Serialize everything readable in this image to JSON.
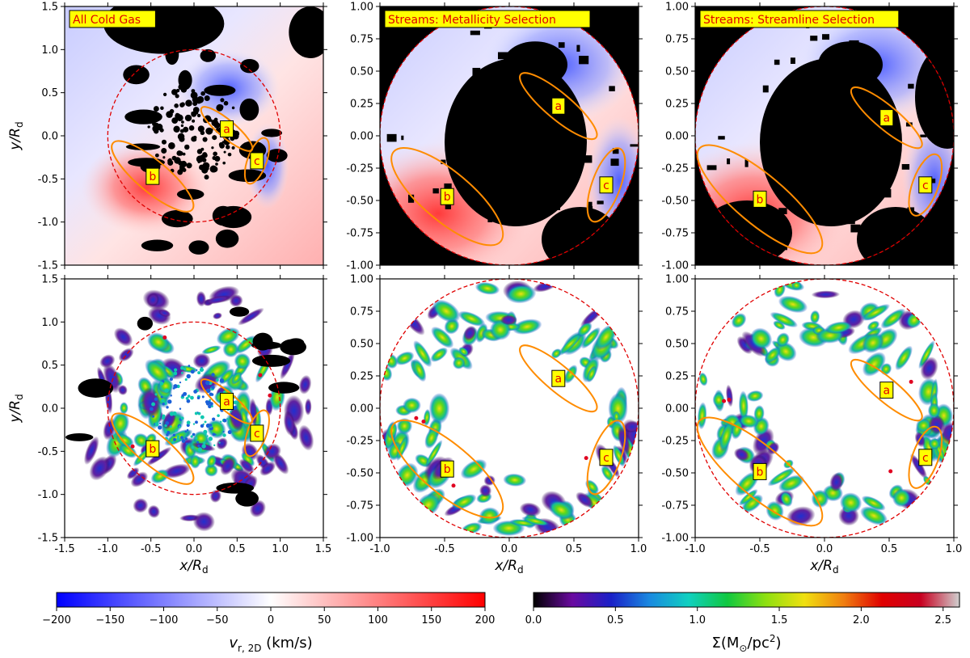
{
  "chart_data": {
    "type": "heatmap",
    "panels": [
      {
        "id": "p1",
        "row": 0,
        "col": 0,
        "map": "vr",
        "title": "All Cold Gas",
        "xlim": [
          -1.5,
          1.5
        ],
        "ylim": [
          -1.5,
          1.5
        ],
        "circle_r": 1.0,
        "yticks": [
          "-1.5",
          "-1.0",
          "-0.5",
          "0.0",
          "0.5",
          "1.0",
          "1.5"
        ],
        "xticks": [],
        "ylabel": true,
        "xlabel": false,
        "regions": [
          {
            "label": "a",
            "cx": 0.38,
            "cy": 0.08,
            "rx": 0.38,
            "ry": 0.1,
            "ang": -40
          },
          {
            "label": "b",
            "cx": -0.48,
            "cy": -0.47,
            "rx": 0.6,
            "ry": 0.18,
            "ang": -40
          },
          {
            "label": "c",
            "cx": 0.73,
            "cy": -0.29,
            "rx": 0.28,
            "ry": 0.11,
            "ang": 70
          }
        ]
      },
      {
        "id": "p2",
        "row": 0,
        "col": 1,
        "map": "vr",
        "title": "Streams: Metallicity Selection",
        "xlim": [
          -1.0,
          1.0
        ],
        "ylim": [
          -1.0,
          1.0
        ],
        "circle_r": 1.0,
        "yticks": [
          "-1.00",
          "-0.75",
          "-0.50",
          "-0.25",
          "0.00",
          "0.25",
          "0.50",
          "0.75",
          "1.00"
        ],
        "xticks": [],
        "ylabel": false,
        "xlabel": false,
        "regions": [
          {
            "label": "a",
            "cx": 0.38,
            "cy": 0.23,
            "rx": 0.38,
            "ry": 0.1,
            "ang": -40
          },
          {
            "label": "b",
            "cx": -0.48,
            "cy": -0.47,
            "rx": 0.54,
            "ry": 0.19,
            "ang": -40
          },
          {
            "label": "c",
            "cx": 0.75,
            "cy": -0.38,
            "rx": 0.3,
            "ry": 0.11,
            "ang": 70
          }
        ]
      },
      {
        "id": "p3",
        "row": 0,
        "col": 2,
        "map": "vr",
        "title": "Streams: Streamline Selection",
        "xlim": [
          -1.0,
          1.0
        ],
        "ylim": [
          -1.0,
          1.0
        ],
        "circle_r": 1.0,
        "yticks": [
          "-1.00",
          "-0.75",
          "-0.50",
          "-0.25",
          "0.00",
          "0.25",
          "0.50",
          "0.75",
          "1.00"
        ],
        "xticks": [],
        "ylabel": false,
        "xlabel": false,
        "regions": [
          {
            "label": "a",
            "cx": 0.48,
            "cy": 0.14,
            "rx": 0.35,
            "ry": 0.09,
            "ang": -40
          },
          {
            "label": "b",
            "cx": -0.5,
            "cy": -0.49,
            "rx": 0.61,
            "ry": 0.19,
            "ang": -40
          },
          {
            "label": "c",
            "cx": 0.78,
            "cy": -0.38,
            "rx": 0.25,
            "ry": 0.1,
            "ang": 70
          }
        ]
      },
      {
        "id": "p4",
        "row": 1,
        "col": 0,
        "map": "sigma",
        "title": "",
        "xlim": [
          -1.5,
          1.5
        ],
        "ylim": [
          -1.5,
          1.5
        ],
        "circle_r": 1.0,
        "yticks": [
          "-1.5",
          "-1.0",
          "-0.5",
          "0.0",
          "0.5",
          "1.0",
          "1.5"
        ],
        "xticks": [
          "-1.5",
          "-1.0",
          "-0.5",
          "0.0",
          "0.5",
          "1.0",
          "1.5"
        ],
        "ylabel": true,
        "xlabel": true,
        "regions": [
          {
            "label": "a",
            "cx": 0.38,
            "cy": 0.08,
            "rx": 0.38,
            "ry": 0.1,
            "ang": -40
          },
          {
            "label": "b",
            "cx": -0.48,
            "cy": -0.47,
            "rx": 0.6,
            "ry": 0.18,
            "ang": -40
          },
          {
            "label": "c",
            "cx": 0.73,
            "cy": -0.29,
            "rx": 0.28,
            "ry": 0.11,
            "ang": 70
          }
        ]
      },
      {
        "id": "p5",
        "row": 1,
        "col": 1,
        "map": "sigma",
        "title": "",
        "xlim": [
          -1.0,
          1.0
        ],
        "ylim": [
          -1.0,
          1.0
        ],
        "circle_r": 1.0,
        "yticks": [
          "-1.00",
          "-0.75",
          "-0.50",
          "-0.25",
          "0.00",
          "0.25",
          "0.50",
          "0.75",
          "1.00"
        ],
        "xticks": [
          "-1.0",
          "-0.5",
          "0.0",
          "0.5",
          "1.0"
        ],
        "ylabel": false,
        "xlabel": true,
        "regions": [
          {
            "label": "a",
            "cx": 0.38,
            "cy": 0.23,
            "rx": 0.38,
            "ry": 0.1,
            "ang": -40
          },
          {
            "label": "b",
            "cx": -0.48,
            "cy": -0.47,
            "rx": 0.54,
            "ry": 0.19,
            "ang": -40
          },
          {
            "label": "c",
            "cx": 0.75,
            "cy": -0.38,
            "rx": 0.3,
            "ry": 0.11,
            "ang": 70
          }
        ]
      },
      {
        "id": "p6",
        "row": 1,
        "col": 2,
        "map": "sigma",
        "title": "",
        "xlim": [
          -1.0,
          1.0
        ],
        "ylim": [
          -1.0,
          1.0
        ],
        "circle_r": 1.0,
        "yticks": [
          "-1.00",
          "-0.75",
          "-0.50",
          "-0.25",
          "0.00",
          "0.25",
          "0.50",
          "0.75",
          "1.00"
        ],
        "xticks": [
          "-1.0",
          "-0.5",
          "0.0",
          "0.5",
          "1.0"
        ],
        "ylabel": false,
        "xlabel": true,
        "regions": [
          {
            "label": "a",
            "cx": 0.48,
            "cy": 0.14,
            "rx": 0.35,
            "ry": 0.09,
            "ang": -40
          },
          {
            "label": "b",
            "cx": -0.5,
            "cy": -0.49,
            "rx": 0.61,
            "ry": 0.19,
            "ang": -40
          },
          {
            "label": "c",
            "cx": 0.78,
            "cy": -0.38,
            "rx": 0.25,
            "ry": 0.1,
            "ang": 70
          }
        ]
      }
    ],
    "axis_labels": {
      "x": "x/R",
      "y": "y/R",
      "sub": "d"
    },
    "colorbars": [
      {
        "id": "vr",
        "label": "v",
        "label_sub": "r, 2D",
        "label_unit": " (km/s)",
        "range": [
          -200,
          200
        ],
        "ticks": [
          "−200",
          "−150",
          "−100",
          "−50",
          "0",
          "50",
          "100",
          "150",
          "200"
        ],
        "colors": [
          "#0000ff",
          "#ffffff",
          "#ff0000"
        ]
      },
      {
        "id": "sigma",
        "label": "Σ(M",
        "label_sub": "⊙",
        "label_unit": "/pc",
        "label_sup": "2",
        "label_end": ")",
        "range": [
          0.0,
          2.6
        ],
        "ticks": [
          "0.0",
          "0.5",
          "1.0",
          "1.5",
          "2.0",
          "2.5"
        ],
        "colors": [
          "#000000",
          "#6a0aa0",
          "#1a20c8",
          "#1a8ae0",
          "#10d0c0",
          "#10c840",
          "#8ee010",
          "#f0e010",
          "#f08010",
          "#e00000",
          "#c80020",
          "#d0d0d0"
        ]
      }
    ]
  }
}
